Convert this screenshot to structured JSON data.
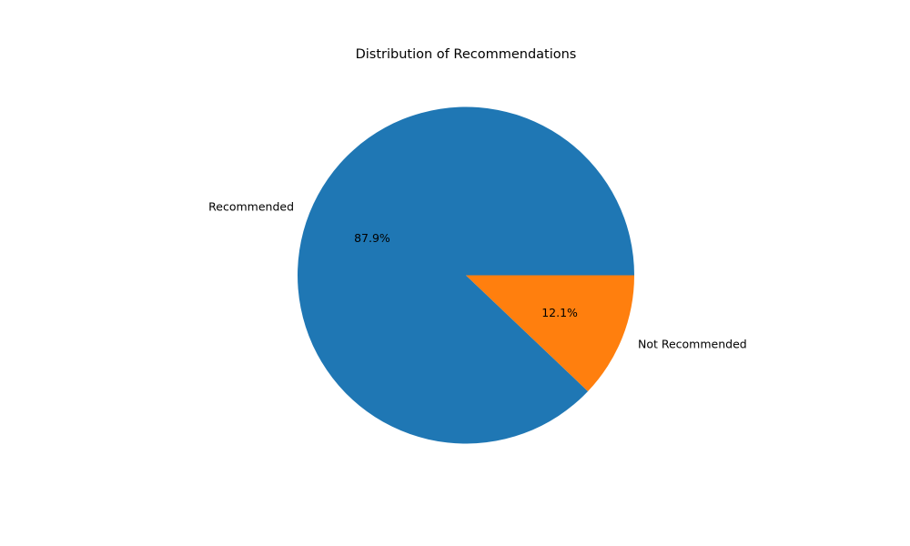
{
  "chart_data": {
    "type": "pie",
    "title": "Distribution of Recommendations",
    "categories": [
      "Recommended",
      "Not Recommended"
    ],
    "values": [
      87.9,
      12.1
    ],
    "value_labels": [
      "87.9%",
      "12.1%"
    ],
    "colors": [
      "#1f77b4",
      "#ff7f0e"
    ],
    "start_angle_deg": 0,
    "direction": "counterclockwise",
    "legend": "none"
  }
}
